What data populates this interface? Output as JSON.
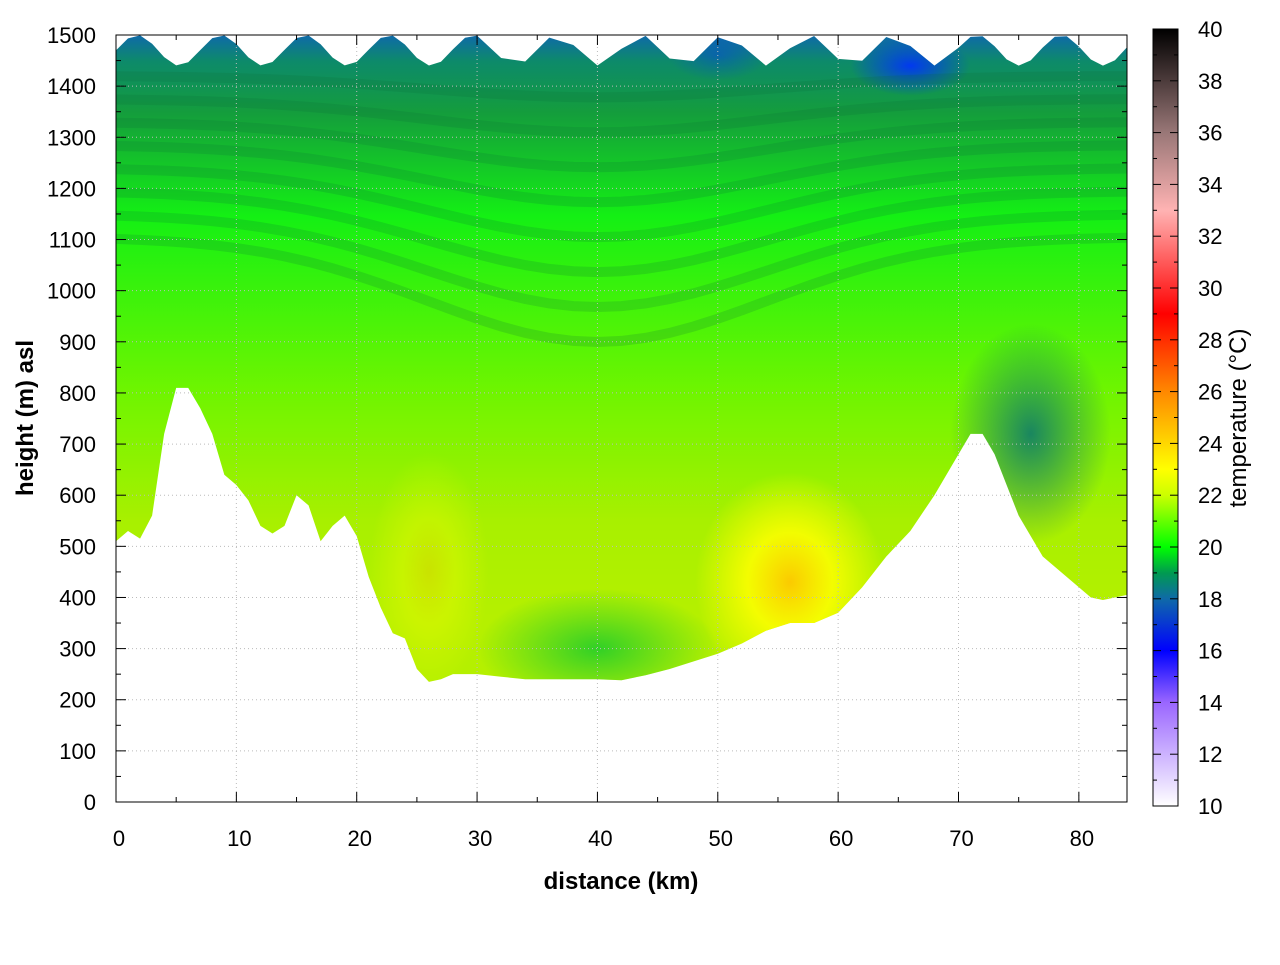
{
  "chart_data": {
    "type": "heatmap",
    "subtype": "vertical cross-section (distance vs height) filled contour",
    "title": "",
    "xlabel": "distance (km)",
    "ylabel": "height (m) asl",
    "xlim": [
      0,
      84
    ],
    "ylim": [
      0,
      1500
    ],
    "x_ticks": [
      "0",
      "10",
      "20",
      "30",
      "40",
      "50",
      "60",
      "70",
      "80"
    ],
    "y_ticks": [
      "0",
      "100",
      "200",
      "300",
      "400",
      "500",
      "600",
      "700",
      "800",
      "900",
      "1000",
      "1100",
      "1200",
      "1300",
      "1400",
      "1500"
    ],
    "grid": true,
    "colorbar": {
      "label": "temperature (°C)",
      "range": [
        10,
        40
      ],
      "ticks": [
        "10",
        "12",
        "14",
        "16",
        "18",
        "20",
        "22",
        "24",
        "26",
        "28",
        "30",
        "32",
        "34",
        "36",
        "38",
        "40"
      ],
      "colors": [
        {
          "value": 10,
          "color": "#ffffff"
        },
        {
          "value": 14,
          "color": "#9a66ff"
        },
        {
          "value": 16,
          "color": "#0000ff"
        },
        {
          "value": 18,
          "color": "#0f6aa8"
        },
        {
          "value": 19,
          "color": "#009a50"
        },
        {
          "value": 20,
          "color": "#00ff00"
        },
        {
          "value": 22,
          "color": "#ccff00"
        },
        {
          "value": 23,
          "color": "#ffff00"
        },
        {
          "value": 26,
          "color": "#ff8800"
        },
        {
          "value": 29,
          "color": "#ff0000"
        },
        {
          "value": 33,
          "color": "#ffb3b3"
        },
        {
          "value": 36,
          "color": "#997777"
        },
        {
          "value": 40,
          "color": "#000000"
        }
      ]
    },
    "terrain_profile": {
      "x": [
        0,
        1,
        2,
        3,
        4,
        5,
        6,
        7,
        8,
        9,
        10,
        11,
        12,
        13,
        14,
        15,
        16,
        17,
        18,
        19,
        20,
        21,
        22,
        23,
        24,
        25,
        26,
        27,
        28,
        29,
        30,
        32,
        34,
        36,
        38,
        40,
        42,
        44,
        46,
        48,
        50,
        52,
        54,
        56,
        58,
        60,
        62,
        64,
        66,
        68,
        70,
        71,
        72,
        73,
        74,
        75,
        76,
        77,
        78,
        79,
        80,
        81,
        82,
        83,
        84
      ],
      "height_m": [
        510,
        530,
        515,
        560,
        720,
        810,
        810,
        770,
        720,
        640,
        620,
        590,
        540,
        525,
        540,
        600,
        580,
        510,
        540,
        560,
        520,
        440,
        380,
        330,
        320,
        260,
        235,
        240,
        250,
        250,
        250,
        245,
        240,
        240,
        240,
        240,
        238,
        248,
        260,
        275,
        290,
        310,
        335,
        350,
        350,
        370,
        420,
        480,
        530,
        600,
        680,
        720,
        720,
        680,
        620,
        560,
        520,
        480,
        460,
        440,
        420,
        400,
        395,
        400,
        405
      ]
    },
    "temperature_field_summary": [
      {
        "region": "upper boundary 1400-1500 m",
        "temperature_c": 18
      },
      {
        "region": "valley 28-45 km near ground",
        "temperature_c": 20
      },
      {
        "region": "slope 52-60 km, 350-500 m",
        "temperature_c": 23.5
      },
      {
        "region": "ridge 71-74 km, 700-800 m",
        "temperature_c": 18.5
      },
      {
        "region": "mid levels 600-1000 m",
        "temperature_c": 21
      }
    ]
  }
}
